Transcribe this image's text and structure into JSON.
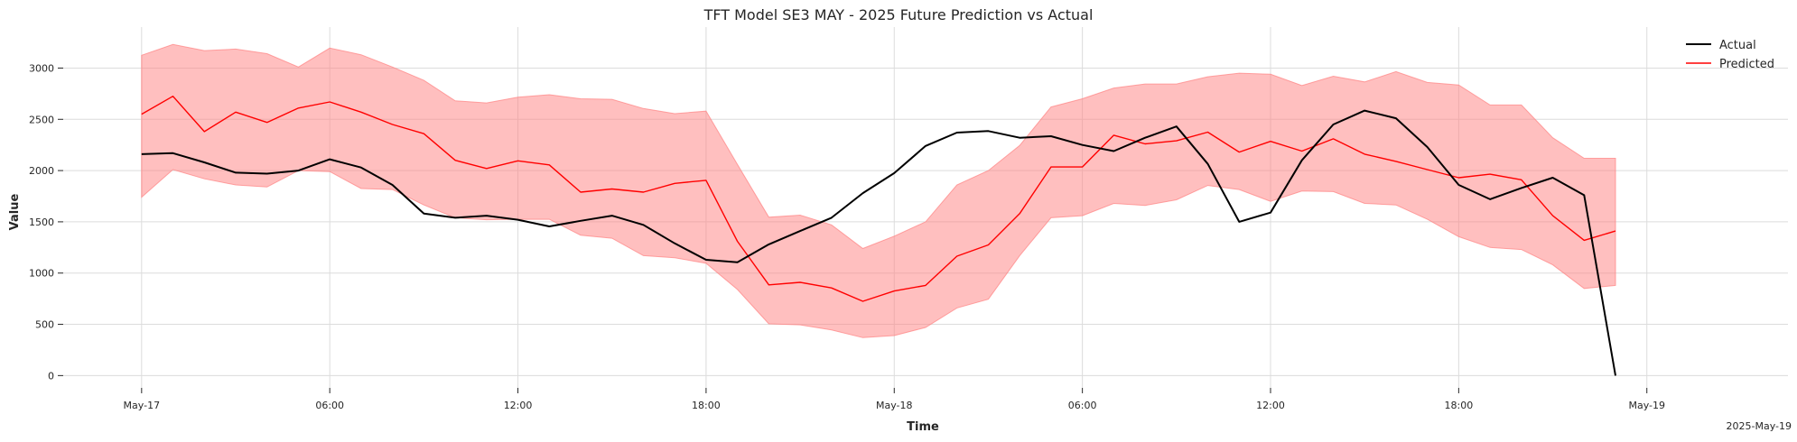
{
  "chart_data": {
    "type": "line",
    "title": "TFT Model SE3 MAY - 2025 Future Prediction vs Actual",
    "xlabel": "Time",
    "ylabel": "Value",
    "x_start_label": "2025-May-17 00:00",
    "x_step_hours": 1,
    "xlim_hours": [
      -2.5,
      52.5
    ],
    "ylim": [
      -120,
      3400
    ],
    "yticks": [
      0,
      500,
      1000,
      1500,
      2000,
      2500,
      3000
    ],
    "xticks": [
      {
        "hour": 0,
        "label": "May-17"
      },
      {
        "hour": 6,
        "label": "06:00"
      },
      {
        "hour": 12,
        "label": "12:00"
      },
      {
        "hour": 18,
        "label": "18:00"
      },
      {
        "hour": 24,
        "label": "May-18"
      },
      {
        "hour": 30,
        "label": "06:00"
      },
      {
        "hour": 36,
        "label": "12:00"
      },
      {
        "hour": 42,
        "label": "18:00"
      },
      {
        "hour": 48,
        "label": "May-19"
      }
    ],
    "x_offset_label": "2025-May-19",
    "grid": true,
    "legend_position": "top-right",
    "series": [
      {
        "name": "Actual",
        "color": "#000000",
        "values": [
          2160,
          2170,
          2080,
          1980,
          1970,
          2000,
          2110,
          2030,
          1860,
          1580,
          1540,
          1560,
          1520,
          1455,
          1510,
          1560,
          1470,
          1290,
          1130,
          1105,
          1280,
          1410,
          1540,
          1780,
          1975,
          2240,
          2370,
          2385,
          2320,
          2335,
          2250,
          2190,
          2320,
          2430,
          2065,
          1500,
          1590,
          2100,
          2450,
          2585,
          2510,
          2230,
          1860,
          1720,
          1830,
          1930,
          1760,
          0
        ]
      },
      {
        "name": "Predicted",
        "color": "#ff0000",
        "values": [
          2550,
          2725,
          2380,
          2570,
          2470,
          2610,
          2670,
          2570,
          2450,
          2360,
          2100,
          2020,
          2095,
          2055,
          1790,
          1820,
          1790,
          1875,
          1905,
          1310,
          885,
          910,
          855,
          725,
          825,
          880,
          1165,
          1275,
          1580,
          2035,
          2035,
          2345,
          2260,
          2290,
          2375,
          2180,
          2285,
          2190,
          2310,
          2160,
          2090,
          2010,
          1930,
          1965,
          1910,
          1560,
          1320,
          1410
        ]
      }
    ],
    "band": {
      "color": "#ff8080",
      "upper": [
        3125,
        3230,
        3170,
        3185,
        3140,
        3010,
        3195,
        3130,
        3010,
        2880,
        2680,
        2660,
        2715,
        2740,
        2700,
        2695,
        2605,
        2555,
        2580,
        2060,
        1545,
        1565,
        1470,
        1240,
        1360,
        1500,
        1860,
        2000,
        2245,
        2620,
        2700,
        2805,
        2845,
        2845,
        2915,
        2950,
        2940,
        2830,
        2920,
        2865,
        2965,
        2860,
        2835,
        2640,
        2640,
        2320,
        2120,
        2120
      ],
      "lower": [
        1740,
        2010,
        1920,
        1860,
        1840,
        2000,
        1990,
        1825,
        1815,
        1665,
        1540,
        1520,
        1525,
        1525,
        1370,
        1340,
        1170,
        1150,
        1095,
        840,
        505,
        495,
        445,
        370,
        390,
        470,
        660,
        745,
        1170,
        1540,
        1560,
        1680,
        1660,
        1715,
        1855,
        1815,
        1700,
        1800,
        1795,
        1680,
        1665,
        1525,
        1355,
        1250,
        1230,
        1080,
        850,
        880
      ]
    }
  }
}
